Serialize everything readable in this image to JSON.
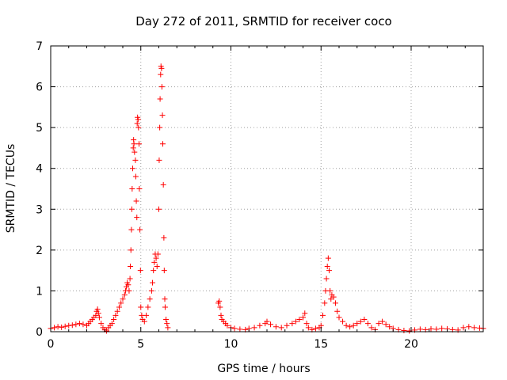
{
  "chart_data": {
    "type": "scatter",
    "title": "Day 272 of 2011, SRMTID for receiver coco",
    "xlabel": "GPS time / hours",
    "ylabel": "SRMTID / TECUs",
    "xlim": [
      0,
      24
    ],
    "ylim": [
      0,
      7
    ],
    "xticks": [
      0,
      5,
      10,
      15,
      20
    ],
    "yticks": [
      0,
      1,
      2,
      3,
      4,
      5,
      6,
      7
    ],
    "grid": true,
    "marker": "+",
    "color": "#ff0000",
    "series": [
      {
        "name": "SRMTID",
        "points": [
          [
            0.0,
            0.08
          ],
          [
            0.2,
            0.1
          ],
          [
            0.4,
            0.12
          ],
          [
            0.6,
            0.11
          ],
          [
            0.8,
            0.13
          ],
          [
            1.0,
            0.15
          ],
          [
            1.2,
            0.16
          ],
          [
            1.4,
            0.18
          ],
          [
            1.6,
            0.2
          ],
          [
            1.8,
            0.18
          ],
          [
            2.0,
            0.15
          ],
          [
            2.1,
            0.2
          ],
          [
            2.2,
            0.25
          ],
          [
            2.3,
            0.3
          ],
          [
            2.4,
            0.35
          ],
          [
            2.5,
            0.4
          ],
          [
            2.55,
            0.5
          ],
          [
            2.6,
            0.55
          ],
          [
            2.65,
            0.45
          ],
          [
            2.7,
            0.35
          ],
          [
            2.8,
            0.2
          ],
          [
            2.9,
            0.1
          ],
          [
            3.0,
            0.05
          ],
          [
            3.1,
            0.02
          ],
          [
            3.2,
            0.1
          ],
          [
            3.3,
            0.15
          ],
          [
            3.4,
            0.2
          ],
          [
            3.5,
            0.3
          ],
          [
            3.6,
            0.4
          ],
          [
            3.7,
            0.5
          ],
          [
            3.8,
            0.6
          ],
          [
            3.9,
            0.7
          ],
          [
            4.0,
            0.8
          ],
          [
            4.1,
            0.9
          ],
          [
            4.15,
            1.0
          ],
          [
            4.2,
            1.1
          ],
          [
            4.25,
            1.2
          ],
          [
            4.3,
            1.15
          ],
          [
            4.35,
            1.0
          ],
          [
            4.4,
            1.3
          ],
          [
            4.42,
            1.6
          ],
          [
            4.45,
            2.0
          ],
          [
            4.48,
            2.5
          ],
          [
            4.5,
            3.0
          ],
          [
            4.52,
            3.5
          ],
          [
            4.55,
            4.0
          ],
          [
            4.58,
            4.5
          ],
          [
            4.6,
            4.7
          ],
          [
            4.62,
            4.6
          ],
          [
            4.65,
            4.4
          ],
          [
            4.7,
            4.2
          ],
          [
            4.72,
            3.8
          ],
          [
            4.75,
            3.2
          ],
          [
            4.78,
            2.8
          ],
          [
            4.8,
            5.1
          ],
          [
            4.82,
            5.25
          ],
          [
            4.85,
            5.2
          ],
          [
            4.87,
            5.0
          ],
          [
            4.9,
            4.6
          ],
          [
            4.92,
            3.5
          ],
          [
            4.95,
            2.5
          ],
          [
            4.98,
            1.5
          ],
          [
            5.0,
            0.6
          ],
          [
            5.05,
            0.4
          ],
          [
            5.1,
            0.3
          ],
          [
            5.2,
            0.25
          ],
          [
            5.3,
            0.4
          ],
          [
            5.4,
            0.6
          ],
          [
            5.5,
            0.8
          ],
          [
            5.6,
            1.0
          ],
          [
            5.65,
            1.2
          ],
          [
            5.7,
            1.5
          ],
          [
            5.75,
            1.7
          ],
          [
            5.8,
            1.9
          ],
          [
            5.85,
            1.8
          ],
          [
            5.9,
            1.6
          ],
          [
            5.95,
            1.9
          ],
          [
            6.0,
            3.0
          ],
          [
            6.02,
            4.2
          ],
          [
            6.05,
            5.0
          ],
          [
            6.07,
            5.7
          ],
          [
            6.1,
            6.3
          ],
          [
            6.12,
            6.5
          ],
          [
            6.15,
            6.45
          ],
          [
            6.17,
            6.0
          ],
          [
            6.2,
            5.3
          ],
          [
            6.22,
            4.6
          ],
          [
            6.25,
            3.6
          ],
          [
            6.28,
            2.3
          ],
          [
            6.3,
            1.5
          ],
          [
            6.33,
            0.8
          ],
          [
            6.35,
            0.6
          ],
          [
            6.4,
            0.3
          ],
          [
            6.45,
            0.2
          ],
          [
            6.5,
            0.1
          ],
          [
            9.3,
            0.7
          ],
          [
            9.35,
            0.75
          ],
          [
            9.4,
            0.6
          ],
          [
            9.45,
            0.4
          ],
          [
            9.5,
            0.3
          ],
          [
            9.6,
            0.25
          ],
          [
            9.7,
            0.2
          ],
          [
            9.8,
            0.15
          ],
          [
            10.0,
            0.1
          ],
          [
            10.2,
            0.08
          ],
          [
            10.5,
            0.06
          ],
          [
            10.8,
            0.05
          ],
          [
            11.0,
            0.08
          ],
          [
            11.3,
            0.1
          ],
          [
            11.6,
            0.15
          ],
          [
            11.9,
            0.2
          ],
          [
            12.0,
            0.25
          ],
          [
            12.2,
            0.18
          ],
          [
            12.5,
            0.12
          ],
          [
            12.8,
            0.1
          ],
          [
            13.1,
            0.15
          ],
          [
            13.4,
            0.2
          ],
          [
            13.6,
            0.25
          ],
          [
            13.8,
            0.3
          ],
          [
            14.0,
            0.35
          ],
          [
            14.1,
            0.45
          ],
          [
            14.2,
            0.2
          ],
          [
            14.3,
            0.1
          ],
          [
            14.5,
            0.05
          ],
          [
            14.7,
            0.08
          ],
          [
            14.9,
            0.1
          ],
          [
            15.0,
            0.15
          ],
          [
            15.1,
            0.4
          ],
          [
            15.2,
            0.7
          ],
          [
            15.25,
            1.0
          ],
          [
            15.3,
            1.3
          ],
          [
            15.35,
            1.6
          ],
          [
            15.4,
            1.8
          ],
          [
            15.45,
            1.5
          ],
          [
            15.5,
            1.0
          ],
          [
            15.55,
            0.8
          ],
          [
            15.6,
            0.9
          ],
          [
            15.7,
            0.85
          ],
          [
            15.8,
            0.7
          ],
          [
            15.9,
            0.5
          ],
          [
            16.0,
            0.35
          ],
          [
            16.2,
            0.25
          ],
          [
            16.4,
            0.15
          ],
          [
            16.6,
            0.12
          ],
          [
            16.8,
            0.15
          ],
          [
            17.0,
            0.2
          ],
          [
            17.2,
            0.25
          ],
          [
            17.4,
            0.3
          ],
          [
            17.6,
            0.2
          ],
          [
            17.8,
            0.1
          ],
          [
            18.0,
            0.05
          ],
          [
            18.2,
            0.2
          ],
          [
            18.4,
            0.25
          ],
          [
            18.6,
            0.18
          ],
          [
            18.8,
            0.12
          ],
          [
            19.0,
            0.08
          ],
          [
            19.3,
            0.05
          ],
          [
            19.6,
            0.03
          ],
          [
            19.9,
            0.02
          ],
          [
            20.2,
            0.04
          ],
          [
            20.5,
            0.06
          ],
          [
            20.8,
            0.05
          ],
          [
            21.1,
            0.07
          ],
          [
            21.4,
            0.06
          ],
          [
            21.7,
            0.08
          ],
          [
            22.0,
            0.07
          ],
          [
            22.3,
            0.05
          ],
          [
            22.6,
            0.04
          ],
          [
            22.9,
            0.1
          ],
          [
            23.2,
            0.12
          ],
          [
            23.5,
            0.1
          ],
          [
            23.8,
            0.09
          ],
          [
            24.0,
            0.08
          ]
        ]
      }
    ]
  }
}
